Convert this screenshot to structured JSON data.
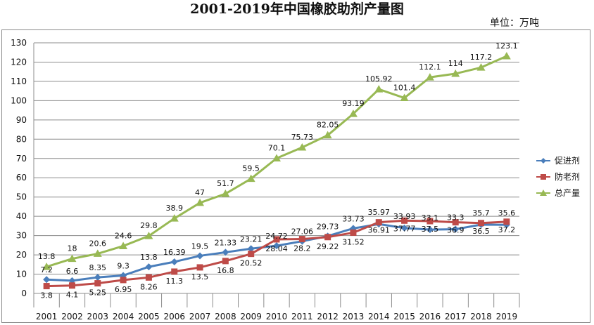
{
  "title": "2001-2019年中国橡胶助剂产量图",
  "unit": "单位：万吨",
  "chart_data": {
    "type": "line",
    "title": "2001-2019年中国橡胶助剂产量图",
    "xlabel": "",
    "ylabel": "",
    "x": [
      "2001",
      "2002",
      "2003",
      "2004",
      "2005",
      "2006",
      "2007",
      "2008",
      "2009",
      "2010",
      "2011",
      "2012",
      "2013",
      "2014",
      "2015",
      "2016",
      "2017",
      "2018",
      "2019"
    ],
    "ylim": [
      0,
      130
    ],
    "yticks": [
      0,
      10,
      20,
      30,
      40,
      50,
      60,
      70,
      80,
      90,
      100,
      110,
      120,
      130
    ],
    "grid": true,
    "legend_position": "right",
    "series": [
      {
        "name": "促进剂",
        "color": "#4a7ebb",
        "marker": "diamond",
        "values": [
          7.2,
          6.6,
          8.35,
          9.3,
          13.8,
          16.39,
          19.5,
          21.33,
          23.21,
          24.72,
          27.06,
          29.73,
          33.73,
          35.97,
          33.93,
          33.1,
          33.3,
          35.7,
          35.6
        ],
        "labels": [
          "7.2",
          "6.6",
          "8.35",
          "9.3",
          "13.8",
          "16.39",
          "19.5",
          "21.33",
          "23.21",
          "24.72",
          "27.06",
          "29.73",
          "33.73",
          "35.97",
          "33.93",
          "33.1",
          "33.3",
          "35.7",
          "35.6"
        ]
      },
      {
        "name": "防老剂",
        "color": "#be4b48",
        "marker": "square",
        "values": [
          3.8,
          4.1,
          5.25,
          6.95,
          8.26,
          11.3,
          13.5,
          16.8,
          20.52,
          28.04,
          28.2,
          29.22,
          31.52,
          36.91,
          37.77,
          37.5,
          36.9,
          36.5,
          37.2
        ],
        "labels": [
          "3.8",
          "4.1",
          "5.25",
          "6.95",
          "8.26",
          "11.3",
          "13.5",
          "16.8",
          "20.52",
          "28.04",
          "28.2",
          "29.22",
          "31.52",
          "36.91",
          "37.77",
          "37.5",
          "36.9",
          "36.5",
          "37.2"
        ]
      },
      {
        "name": "总产量",
        "color": "#98b954",
        "marker": "triangle",
        "values": [
          13.8,
          18,
          20.6,
          24.6,
          29.8,
          38.9,
          47,
          51.7,
          59.5,
          70.1,
          75.73,
          82.05,
          93.19,
          105.92,
          101.4,
          112.1,
          114,
          117.2,
          123.1
        ],
        "labels": [
          "13.8",
          "18",
          "20.6",
          "24.6",
          "29.8",
          "38.9",
          "47",
          "51.7",
          "59.5",
          "70.1",
          "75.73",
          "82.05",
          "93.19",
          "105.92",
          "101.4",
          "112.1",
          "114",
          "117.2",
          "123.1"
        ]
      }
    ]
  }
}
